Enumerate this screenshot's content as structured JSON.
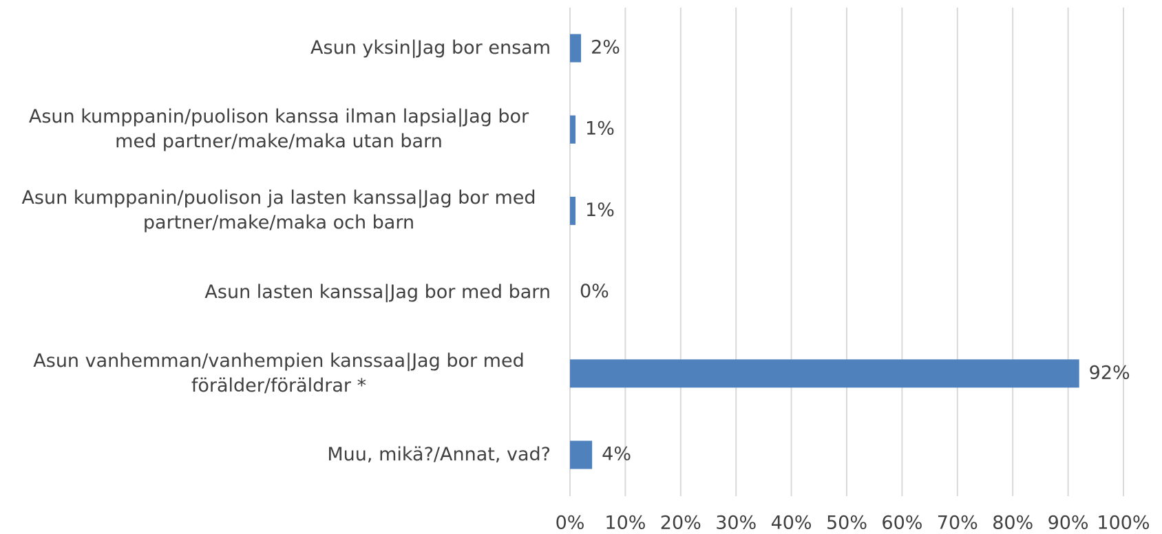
{
  "chart_data": {
    "type": "bar",
    "orientation": "horizontal",
    "categories": [
      "Asun yksin|Jag bor ensam",
      "Asun kumppanin/puolison kanssa ilman lapsia|Jag bor med partner/make/maka utan barn",
      "Asun kumppanin/puolison ja lasten kanssa|Jag bor med partner/make/maka och barn",
      "Asun lasten kanssa|Jag bor med barn",
      "Asun vanhemman/vanhempien kanssaa|Jag bor med förälder/föräldrar *",
      "Muu, mikä?/Annat, vad?"
    ],
    "values": [
      2,
      1,
      1,
      0,
      92,
      4
    ],
    "value_labels": [
      "2%",
      "1%",
      "1%",
      "0%",
      "92%",
      "4%"
    ],
    "color": "#4f81bd",
    "xlim": [
      0,
      100
    ],
    "xticks": [
      {
        "value": 0,
        "label": "0%"
      },
      {
        "value": 10,
        "label": "10%"
      },
      {
        "value": 20,
        "label": "20%"
      },
      {
        "value": 30,
        "label": "30%"
      },
      {
        "value": 40,
        "label": "40%"
      },
      {
        "value": 50,
        "label": "50%"
      },
      {
        "value": 60,
        "label": "60%"
      },
      {
        "value": 70,
        "label": "70%"
      },
      {
        "value": 80,
        "label": "80%"
      },
      {
        "value": 90,
        "label": "90%"
      },
      {
        "value": 100,
        "label": "100%"
      }
    ],
    "grid": true
  }
}
